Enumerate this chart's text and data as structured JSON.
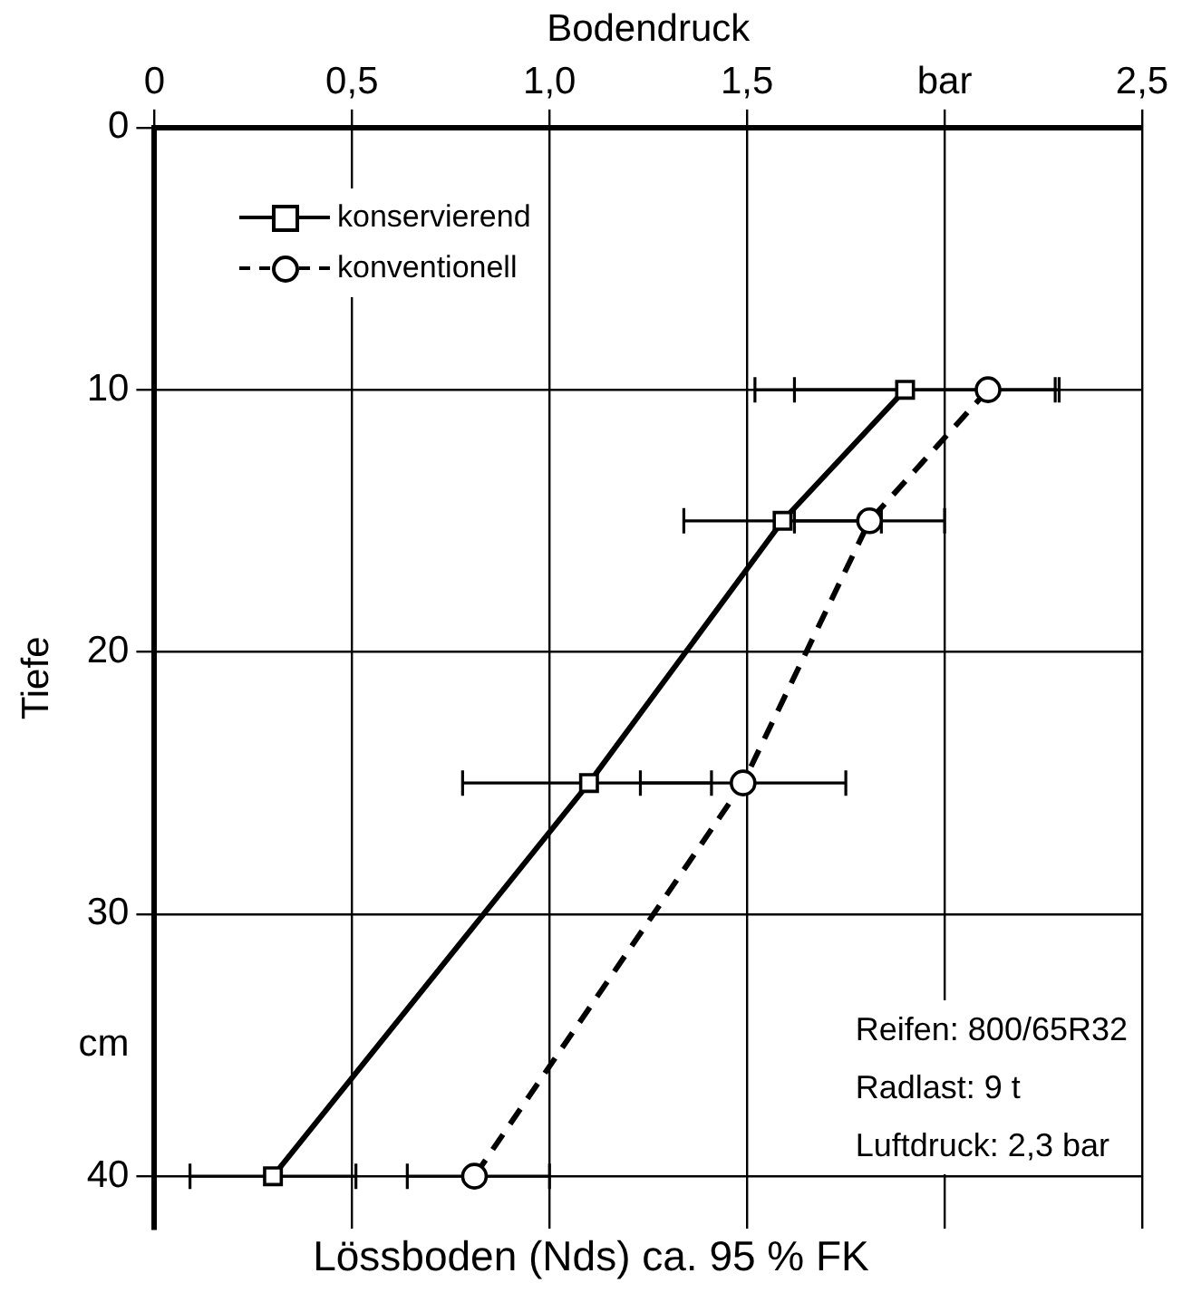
{
  "chart_data": {
    "type": "line",
    "xlabel": "Bodendruck",
    "ylabel": "Tiefe",
    "xlim": [
      0,
      2.5
    ],
    "xticks": [
      0,
      {
        "value": 0.5,
        "label": "0,5"
      },
      {
        "value": 1,
        "label": "1,0"
      },
      {
        "value": 1.5,
        "label": "1,5"
      },
      {
        "value": 2,
        "label": "bar"
      },
      {
        "value": 2.5,
        "label": "2,5"
      }
    ],
    "ylim": [
      42,
      0
    ],
    "yticks": [
      0,
      10,
      20,
      30,
      {
        "value": 35,
        "label": "cm"
      },
      40
    ],
    "grid": true,
    "legend": "top left",
    "series": [
      {
        "name": "konservierend",
        "color": "#000000",
        "marker": "square",
        "line_style": "solid",
        "x": [
          1.9,
          1.59,
          1.1,
          0.3
        ],
        "values": [
          10,
          15,
          25,
          40
        ],
        "xerrors": [
          [
            1.52,
            2.28
          ],
          [
            1.34,
            1.84
          ],
          [
            0.78,
            1.41
          ],
          [
            0.09,
            0.51
          ]
        ]
      },
      {
        "name": "konventionell",
        "color": "#000000",
        "marker": "circle",
        "line_style": "dashed",
        "x": [
          2.11,
          1.81,
          1.49,
          0.81
        ],
        "values": [
          10,
          15,
          25,
          40
        ],
        "xerrors": [
          [
            1.62,
            2.29
          ],
          [
            1.62,
            2.0
          ],
          [
            1.23,
            1.75
          ],
          [
            0.64,
            1.0
          ]
        ]
      }
    ],
    "annotations": [
      "Lössboden (Nds) ca. 95 % FK",
      "Reifen: 800/65R32",
      "Radlast: 9 t",
      "Luftdruck: 2,3 bar"
    ]
  }
}
